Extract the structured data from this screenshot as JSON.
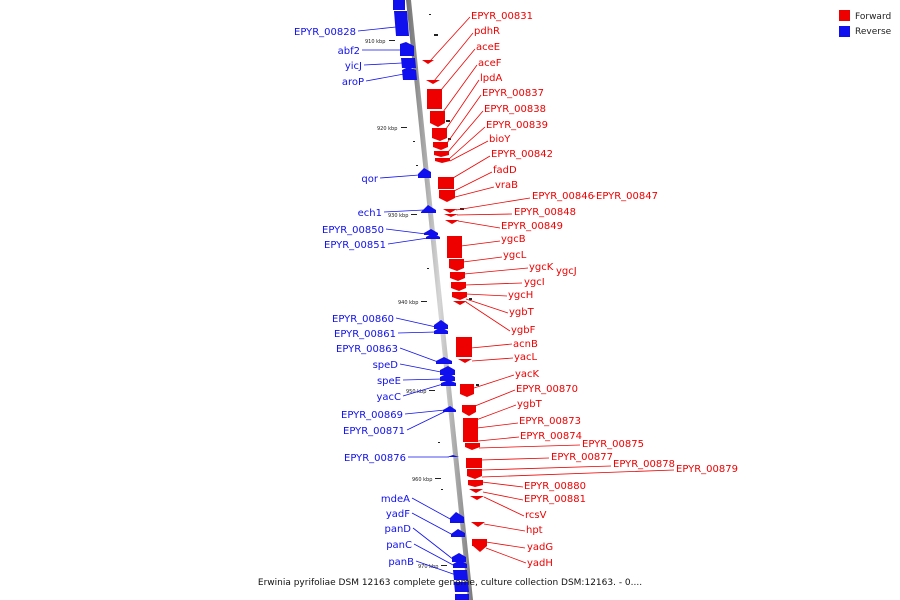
{
  "colors": {
    "forward": "#ee0000",
    "reverse": "#1010ee",
    "backbone": "#999999"
  },
  "legend": {
    "forward": "Forward",
    "reverse": "Reverse"
  },
  "caption": "Erwinia pyrifoliae DSM 12163 complete genome, culture collection DSM:12163. - 0....",
  "ticks": [
    "910 kbp",
    "920 kbp",
    "930 kbp",
    "940 kbp",
    "950 kbp",
    "960 kbp",
    "970 kbp"
  ],
  "reverse_labels": [
    "EPYR_00828",
    "abf2",
    "yicJ",
    "aroP",
    "qor",
    "ech1",
    "EPYR_00850",
    "EPYR_00851",
    "EPYR_00860",
    "EPYR_00861",
    "EPYR_00863",
    "speD",
    "speE",
    "yacC",
    "EPYR_00869",
    "EPYR_00871",
    "EPYR_00876",
    "mdeA",
    "yadF",
    "panD",
    "panC",
    "panB"
  ],
  "forward_labels": [
    "EPYR_00831",
    "pdhR",
    "aceE",
    "aceF",
    "lpdA",
    "EPYR_00837",
    "EPYR_00838",
    "EPYR_00839",
    "bioY",
    "EPYR_00842",
    "fadD",
    "vraB",
    "EPYR_00846",
    "EPYR_00847",
    "EPYR_00848",
    "EPYR_00849",
    "ygcB",
    "ygcL",
    "ygcK",
    "ygcJ",
    "ygcI",
    "ygcH",
    "ygbT",
    "ygbF",
    "acnB",
    "yacL",
    "yacK",
    "EPYR_00870",
    "ygbT",
    "EPYR_00873",
    "EPYR_00874",
    "EPYR_00875",
    "EPYR_00877",
    "EPYR_00878",
    "EPYR_00879",
    "EPYR_00880",
    "EPYR_00881",
    "rcsV",
    "hpt",
    "yadG",
    "yadH"
  ]
}
